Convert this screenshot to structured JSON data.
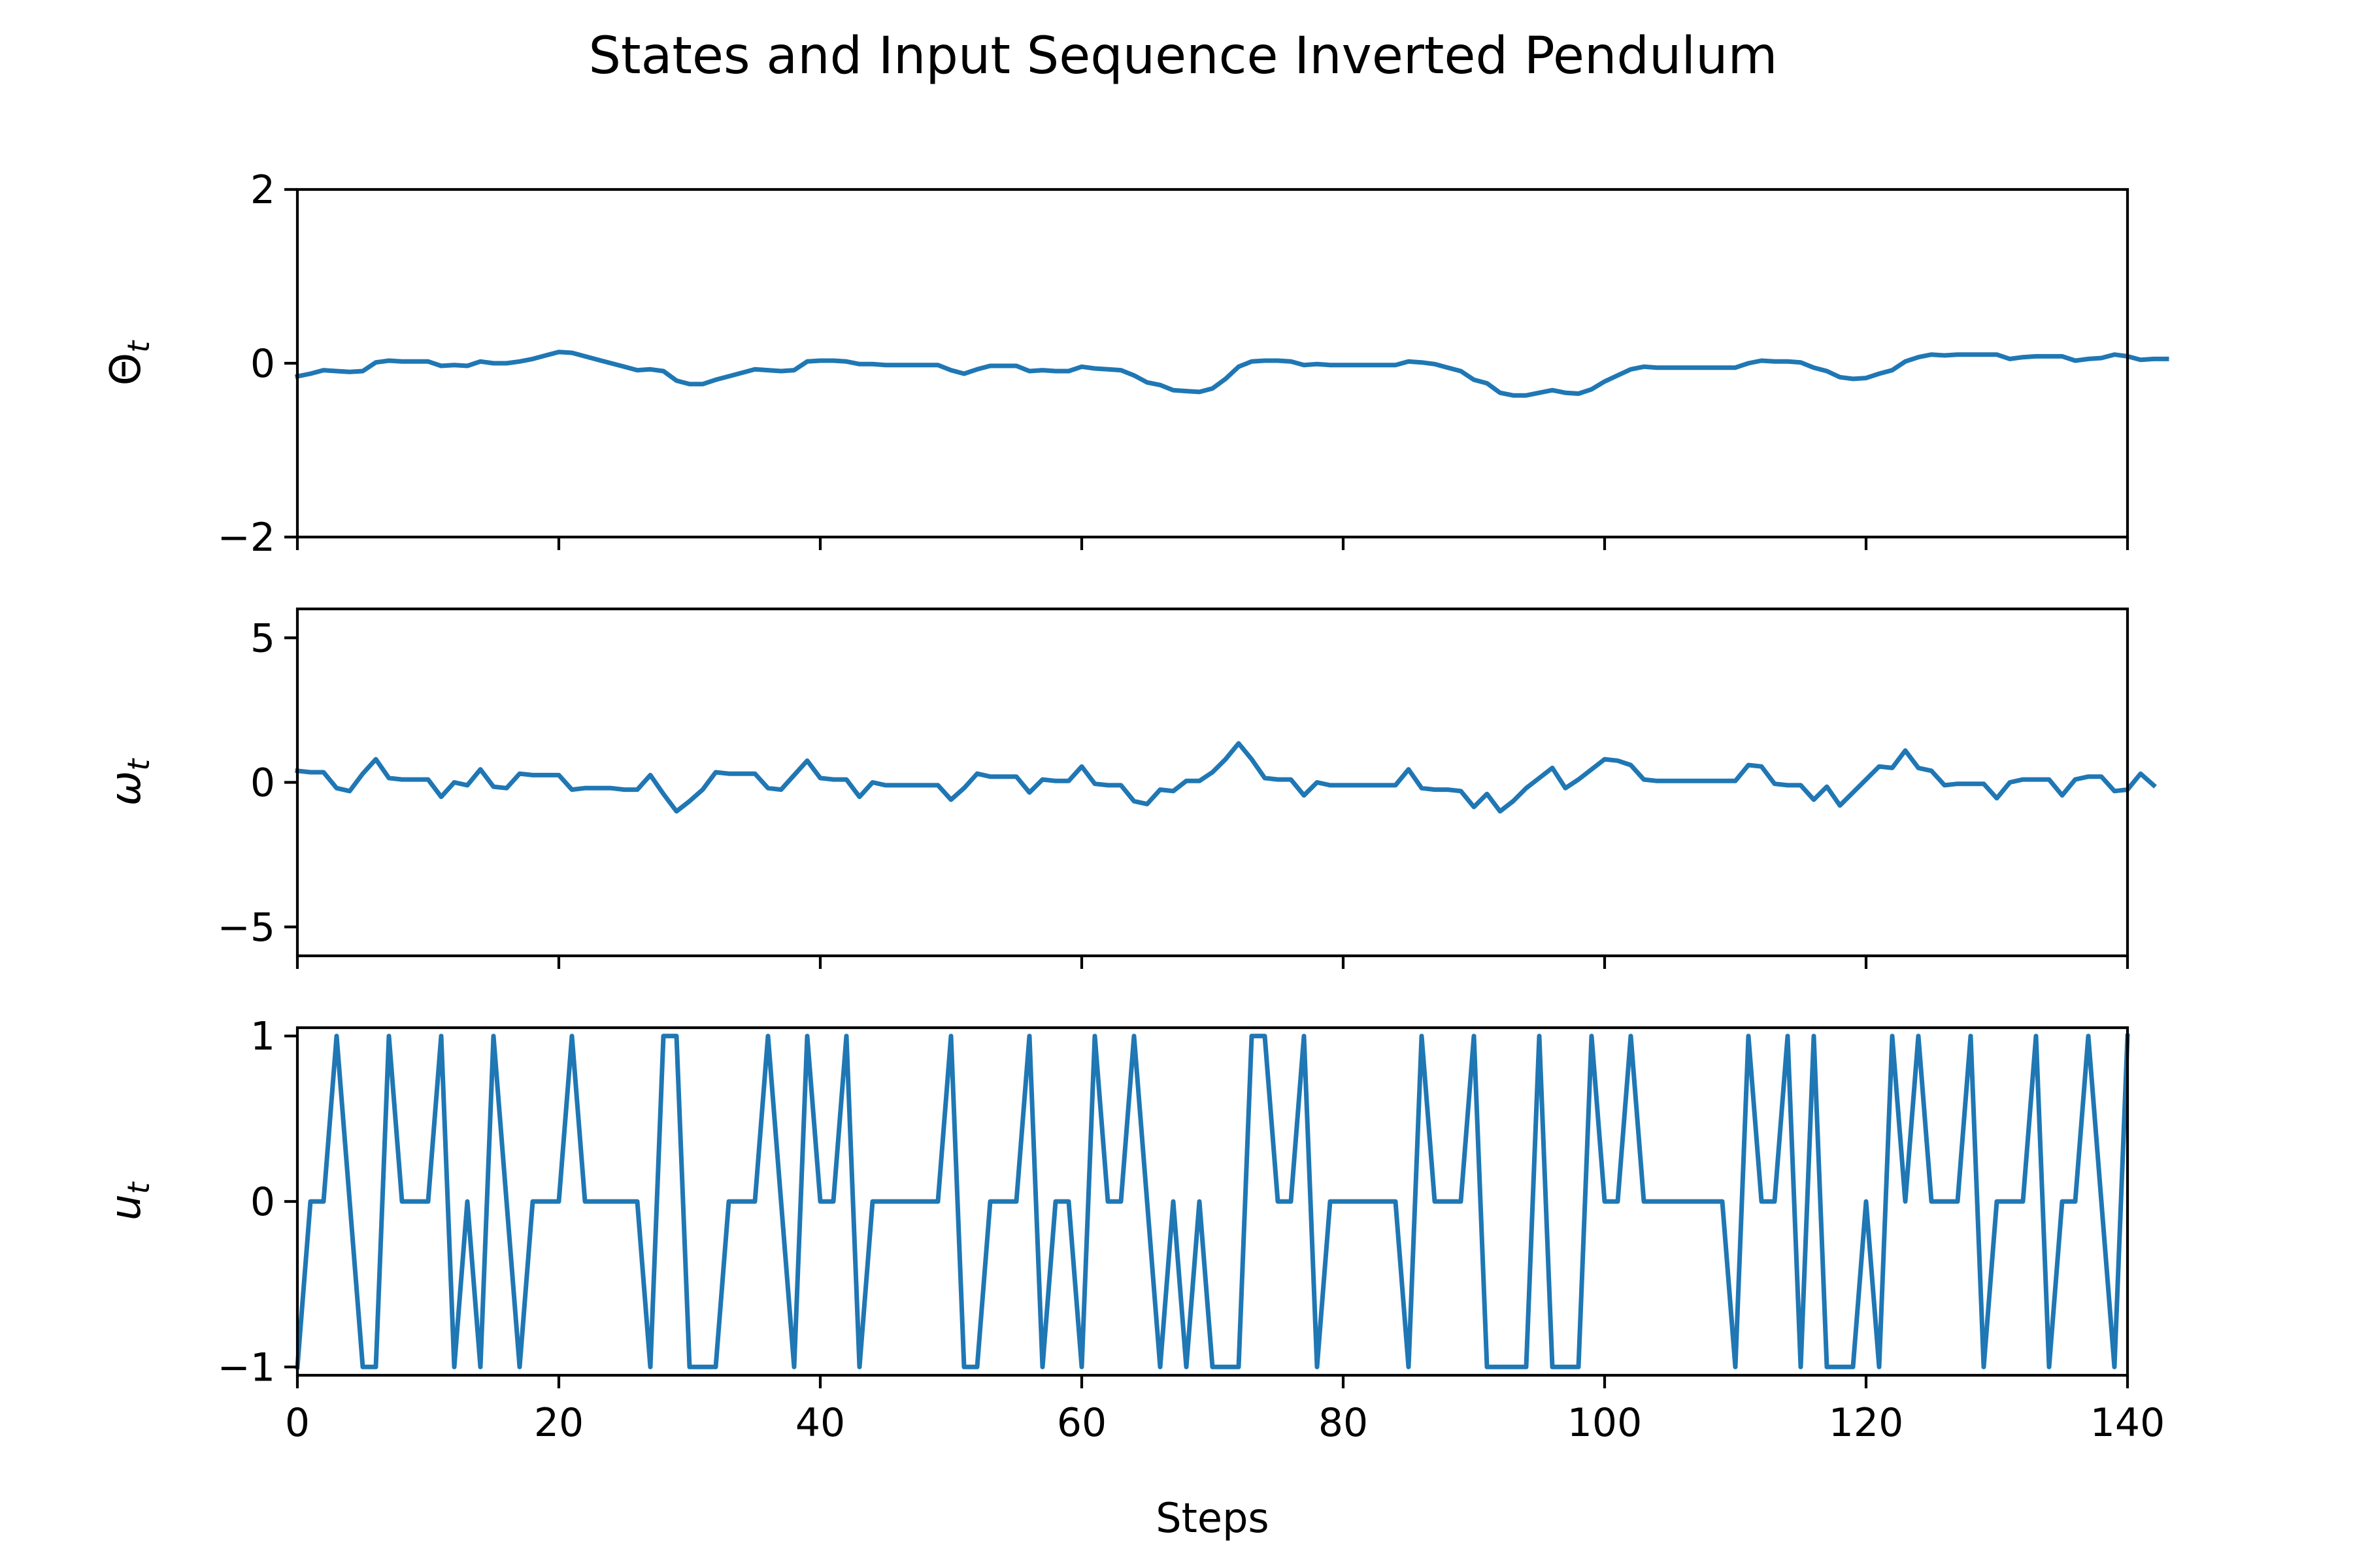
{
  "chart_data": {
    "type": "line",
    "title": "States and Input Sequence Inverted Pendulum",
    "xlabel": "Steps",
    "xlim": [
      0,
      140
    ],
    "xticks": [
      0,
      20,
      40,
      60,
      80,
      100,
      120,
      140
    ],
    "xtick_labels": [
      "0",
      "20",
      "40",
      "60",
      "80",
      "100",
      "120",
      "140"
    ],
    "line_color": "#1f77b4",
    "grid": false,
    "legend": "none",
    "subplots": [
      {
        "id": "theta",
        "ylabel_base": "Θ",
        "ylabel_sub": "t",
        "ylim": [
          -2,
          2
        ],
        "yticks": [
          2,
          0,
          -2
        ],
        "ytick_labels": [
          "2",
          "0",
          "−2"
        ],
        "values": [
          -0.15,
          -0.12,
          -0.08,
          -0.09,
          -0.1,
          -0.09,
          0.01,
          0.03,
          0.02,
          0.02,
          0.02,
          -0.03,
          -0.02,
          -0.03,
          0.02,
          0.0,
          0.0,
          0.02,
          0.05,
          0.09,
          0.13,
          0.12,
          0.08,
          0.04,
          0.0,
          -0.04,
          -0.08,
          -0.07,
          -0.09,
          -0.2,
          -0.24,
          -0.24,
          -0.19,
          -0.15,
          -0.11,
          -0.07,
          -0.08,
          -0.09,
          -0.08,
          0.02,
          0.03,
          0.03,
          0.02,
          -0.01,
          -0.01,
          -0.02,
          -0.02,
          -0.02,
          -0.02,
          -0.02,
          -0.08,
          -0.12,
          -0.07,
          -0.03,
          -0.03,
          -0.03,
          -0.09,
          -0.08,
          -0.09,
          -0.09,
          -0.04,
          -0.06,
          -0.07,
          -0.08,
          -0.14,
          -0.22,
          -0.25,
          -0.31,
          -0.32,
          -0.33,
          -0.29,
          -0.18,
          -0.04,
          0.02,
          0.03,
          0.03,
          0.02,
          -0.02,
          -0.01,
          -0.02,
          -0.02,
          -0.02,
          -0.02,
          -0.02,
          -0.02,
          0.02,
          0.01,
          -0.01,
          -0.05,
          -0.09,
          -0.19,
          -0.23,
          -0.34,
          -0.37,
          -0.37,
          -0.34,
          -0.31,
          -0.34,
          -0.35,
          -0.3,
          -0.21,
          -0.14,
          -0.07,
          -0.04,
          -0.05,
          -0.05,
          -0.05,
          -0.05,
          -0.05,
          -0.05,
          -0.05,
          0.0,
          0.03,
          0.02,
          0.02,
          0.01,
          -0.05,
          -0.09,
          -0.16,
          -0.18,
          -0.17,
          -0.12,
          -0.08,
          0.02,
          0.07,
          0.1,
          0.09,
          0.1,
          0.1,
          0.1,
          0.1,
          0.05,
          0.07,
          0.08,
          0.08,
          0.08,
          0.03,
          0.05,
          0.06,
          0.1,
          0.08,
          0.04,
          0.05,
          0.05
        ]
      },
      {
        "id": "omega",
        "ylabel_base": "ω",
        "ylabel_sub": "t",
        "ylim": [
          -6,
          6
        ],
        "yticks": [
          5,
          0,
          -5
        ],
        "ytick_labels": [
          "5",
          "0",
          "−5"
        ],
        "values": [
          0.4,
          0.35,
          0.35,
          -0.2,
          -0.3,
          0.3,
          0.8,
          0.15,
          0.1,
          0.1,
          0.1,
          -0.5,
          0.0,
          -0.1,
          0.45,
          -0.15,
          -0.2,
          0.3,
          0.25,
          0.25,
          0.25,
          -0.25,
          -0.2,
          -0.2,
          -0.2,
          -0.25,
          -0.25,
          0.25,
          -0.4,
          -1.0,
          -0.65,
          -0.25,
          0.35,
          0.3,
          0.3,
          0.3,
          -0.2,
          -0.25,
          0.25,
          0.75,
          0.15,
          0.1,
          0.1,
          -0.5,
          0.0,
          -0.1,
          -0.1,
          -0.1,
          -0.1,
          -0.1,
          -0.6,
          -0.2,
          0.3,
          0.2,
          0.2,
          0.2,
          -0.35,
          0.1,
          0.05,
          0.05,
          0.55,
          -0.05,
          -0.1,
          -0.1,
          -0.65,
          -0.75,
          -0.25,
          -0.3,
          0.05,
          0.05,
          0.35,
          0.8,
          1.35,
          0.8,
          0.15,
          0.1,
          0.1,
          -0.45,
          0.0,
          -0.1,
          -0.1,
          -0.1,
          -0.1,
          -0.1,
          -0.1,
          0.45,
          -0.2,
          -0.25,
          -0.25,
          -0.3,
          -0.85,
          -0.4,
          -1.0,
          -0.65,
          -0.2,
          0.15,
          0.5,
          -0.2,
          0.1,
          0.45,
          0.8,
          0.75,
          0.6,
          0.1,
          0.05,
          0.05,
          0.05,
          0.05,
          0.05,
          0.05,
          0.05,
          0.6,
          0.55,
          -0.05,
          -0.1,
          -0.1,
          -0.6,
          -0.15,
          -0.8,
          -0.35,
          0.1,
          0.55,
          0.5,
          1.1,
          0.5,
          0.4,
          -0.1,
          -0.05,
          -0.05,
          -0.05,
          -0.55,
          0.0,
          0.1,
          0.1,
          0.1,
          -0.45,
          0.1,
          0.2,
          0.2,
          -0.3,
          -0.25,
          0.3,
          -0.1
        ]
      },
      {
        "id": "input",
        "ylabel_base": "u",
        "ylabel_sub": "t",
        "ylim": [
          -1.05,
          1.05
        ],
        "yticks": [
          1,
          0,
          -1
        ],
        "ytick_labels": [
          "1",
          "0",
          "−1"
        ],
        "values": [
          -1,
          0,
          0,
          1,
          0,
          -1,
          -1,
          1,
          0,
          0,
          0,
          1,
          -1,
          0,
          -1,
          1,
          0,
          -1,
          0,
          0,
          0,
          1,
          0,
          0,
          0,
          0,
          0,
          -1,
          1,
          1,
          -1,
          -1,
          -1,
          0,
          0,
          0,
          1,
          0,
          -1,
          1,
          0,
          0,
          1,
          -1,
          0,
          0,
          0,
          0,
          0,
          0,
          1,
          -1,
          -1,
          0,
          0,
          0,
          1,
          -1,
          0,
          0,
          -1,
          1,
          0,
          0,
          1,
          0,
          -1,
          0,
          -1,
          0,
          -1,
          -1,
          -1,
          1,
          1,
          0,
          0,
          1,
          -1,
          0,
          0,
          0,
          0,
          0,
          0,
          -1,
          1,
          0,
          0,
          0,
          1,
          -1,
          -1,
          -1,
          -1,
          1,
          -1,
          -1,
          -1,
          1,
          0,
          0,
          1,
          0,
          0,
          0,
          0,
          0,
          0,
          0,
          -1,
          1,
          0,
          0,
          1,
          -1,
          1,
          -1,
          -1,
          -1,
          0,
          -1,
          1,
          0,
          1,
          0,
          0,
          0,
          1,
          -1,
          0,
          0,
          0,
          1,
          -1,
          0,
          0,
          1,
          0,
          -1,
          1
        ]
      }
    ]
  }
}
